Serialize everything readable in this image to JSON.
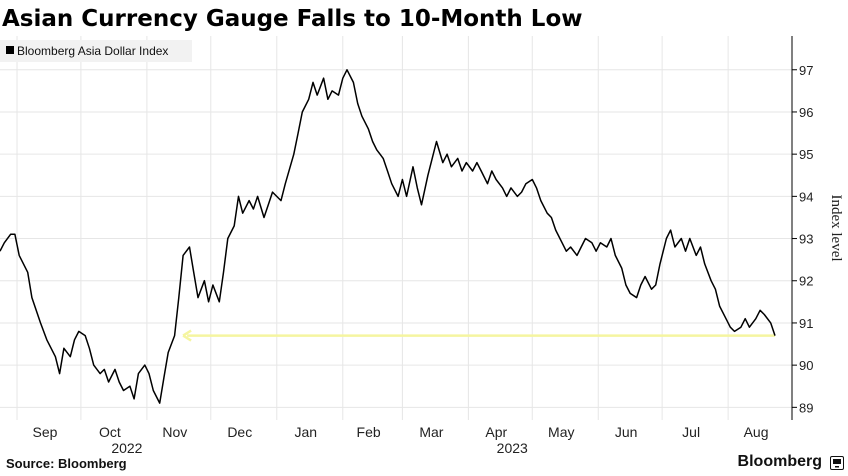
{
  "chart_data": {
    "type": "line",
    "title": "Asian Currency Gauge Falls to 10-Month Low",
    "legend": [
      "Bloomberg Asia Dollar Index"
    ],
    "legend_position": "top-left",
    "ylabel": "Index level",
    "ylim": [
      88.7,
      97.8
    ],
    "yticks": [
      89,
      90,
      91,
      92,
      93,
      94,
      95,
      96,
      97
    ],
    "x_range": [
      "2022-08-24",
      "2023-08-31"
    ],
    "xticks": [
      {
        "label": "Sep",
        "date": "2022-09-01"
      },
      {
        "label": "Oct",
        "date": "2022-10-01"
      },
      {
        "label": "Nov",
        "date": "2022-11-01"
      },
      {
        "label": "Dec",
        "date": "2022-12-01"
      },
      {
        "label": "Jan",
        "date": "2023-01-01"
      },
      {
        "label": "Feb",
        "date": "2023-02-01"
      },
      {
        "label": "Mar",
        "date": "2023-03-01"
      },
      {
        "label": "Apr",
        "date": "2023-04-01"
      },
      {
        "label": "May",
        "date": "2023-05-01"
      },
      {
        "label": "Jun",
        "date": "2023-06-01"
      },
      {
        "label": "Jul",
        "date": "2023-07-01"
      },
      {
        "label": "Aug",
        "date": "2023-08-01"
      }
    ],
    "year_labels": [
      {
        "label": "2022",
        "date": "2022-11-01"
      },
      {
        "label": "2023",
        "date": "2023-05-01"
      }
    ],
    "grid": true,
    "series": [
      {
        "name": "Bloomberg Asia Dollar Index",
        "color": "#000000",
        "points": [
          [
            "2022-08-24",
            92.7
          ],
          [
            "2022-08-26",
            92.9
          ],
          [
            "2022-08-29",
            93.1
          ],
          [
            "2022-08-31",
            93.1
          ],
          [
            "2022-09-02",
            92.6
          ],
          [
            "2022-09-06",
            92.2
          ],
          [
            "2022-09-08",
            91.6
          ],
          [
            "2022-09-12",
            91.0
          ],
          [
            "2022-09-15",
            90.6
          ],
          [
            "2022-09-19",
            90.2
          ],
          [
            "2022-09-21",
            89.8
          ],
          [
            "2022-09-23",
            90.4
          ],
          [
            "2022-09-26",
            90.2
          ],
          [
            "2022-09-28",
            90.6
          ],
          [
            "2022-09-30",
            90.8
          ],
          [
            "2022-10-03",
            90.7
          ],
          [
            "2022-10-05",
            90.4
          ],
          [
            "2022-10-07",
            90.0
          ],
          [
            "2022-10-10",
            89.8
          ],
          [
            "2022-10-12",
            89.9
          ],
          [
            "2022-10-14",
            89.6
          ],
          [
            "2022-10-17",
            89.9
          ],
          [
            "2022-10-19",
            89.6
          ],
          [
            "2022-10-21",
            89.4
          ],
          [
            "2022-10-24",
            89.5
          ],
          [
            "2022-10-26",
            89.2
          ],
          [
            "2022-10-28",
            89.8
          ],
          [
            "2022-10-31",
            90.0
          ],
          [
            "2022-11-02",
            89.8
          ],
          [
            "2022-11-04",
            89.4
          ],
          [
            "2022-11-07",
            89.1
          ],
          [
            "2022-11-09",
            89.7
          ],
          [
            "2022-11-11",
            90.3
          ],
          [
            "2022-11-14",
            90.7
          ],
          [
            "2022-11-16",
            91.6
          ],
          [
            "2022-11-18",
            92.6
          ],
          [
            "2022-11-21",
            92.8
          ],
          [
            "2022-11-23",
            92.2
          ],
          [
            "2022-11-25",
            91.6
          ],
          [
            "2022-11-28",
            92.0
          ],
          [
            "2022-11-30",
            91.5
          ],
          [
            "2022-12-02",
            91.9
          ],
          [
            "2022-12-05",
            91.5
          ],
          [
            "2022-12-07",
            92.2
          ],
          [
            "2022-12-09",
            93.0
          ],
          [
            "2022-12-12",
            93.3
          ],
          [
            "2022-12-14",
            94.0
          ],
          [
            "2022-12-16",
            93.6
          ],
          [
            "2022-12-19",
            93.9
          ],
          [
            "2022-12-21",
            93.7
          ],
          [
            "2022-12-23",
            94.0
          ],
          [
            "2022-12-26",
            93.5
          ],
          [
            "2022-12-28",
            93.8
          ],
          [
            "2022-12-30",
            94.1
          ],
          [
            "2023-01-03",
            93.9
          ],
          [
            "2023-01-05",
            94.3
          ],
          [
            "2023-01-09",
            95.0
          ],
          [
            "2023-01-11",
            95.5
          ],
          [
            "2023-01-13",
            96.0
          ],
          [
            "2023-01-16",
            96.3
          ],
          [
            "2023-01-18",
            96.7
          ],
          [
            "2023-01-20",
            96.4
          ],
          [
            "2023-01-23",
            96.8
          ],
          [
            "2023-01-25",
            96.3
          ],
          [
            "2023-01-27",
            96.5
          ],
          [
            "2023-01-30",
            96.4
          ],
          [
            "2023-02-01",
            96.8
          ],
          [
            "2023-02-03",
            97.0
          ],
          [
            "2023-02-06",
            96.7
          ],
          [
            "2023-02-08",
            96.2
          ],
          [
            "2023-02-10",
            95.9
          ],
          [
            "2023-02-13",
            95.6
          ],
          [
            "2023-02-15",
            95.3
          ],
          [
            "2023-02-17",
            95.1
          ],
          [
            "2023-02-20",
            94.9
          ],
          [
            "2023-02-22",
            94.6
          ],
          [
            "2023-02-24",
            94.3
          ],
          [
            "2023-02-27",
            94.0
          ],
          [
            "2023-03-01",
            94.4
          ],
          [
            "2023-03-03",
            94.0
          ],
          [
            "2023-03-06",
            94.7
          ],
          [
            "2023-03-08",
            94.2
          ],
          [
            "2023-03-10",
            93.8
          ],
          [
            "2023-03-13",
            94.5
          ],
          [
            "2023-03-15",
            94.9
          ],
          [
            "2023-03-17",
            95.3
          ],
          [
            "2023-03-20",
            94.8
          ],
          [
            "2023-03-22",
            95.0
          ],
          [
            "2023-03-24",
            94.7
          ],
          [
            "2023-03-27",
            94.9
          ],
          [
            "2023-03-29",
            94.6
          ],
          [
            "2023-03-31",
            94.8
          ],
          [
            "2023-04-03",
            94.6
          ],
          [
            "2023-04-05",
            94.8
          ],
          [
            "2023-04-07",
            94.6
          ],
          [
            "2023-04-10",
            94.3
          ],
          [
            "2023-04-12",
            94.6
          ],
          [
            "2023-04-14",
            94.4
          ],
          [
            "2023-04-17",
            94.2
          ],
          [
            "2023-04-19",
            94.0
          ],
          [
            "2023-04-21",
            94.2
          ],
          [
            "2023-04-24",
            94.0
          ],
          [
            "2023-04-26",
            94.1
          ],
          [
            "2023-04-28",
            94.3
          ],
          [
            "2023-05-01",
            94.4
          ],
          [
            "2023-05-03",
            94.2
          ],
          [
            "2023-05-05",
            93.9
          ],
          [
            "2023-05-08",
            93.6
          ],
          [
            "2023-05-10",
            93.5
          ],
          [
            "2023-05-12",
            93.2
          ],
          [
            "2023-05-15",
            92.9
          ],
          [
            "2023-05-17",
            92.7
          ],
          [
            "2023-05-19",
            92.8
          ],
          [
            "2023-05-22",
            92.6
          ],
          [
            "2023-05-24",
            92.8
          ],
          [
            "2023-05-26",
            93.0
          ],
          [
            "2023-05-29",
            92.9
          ],
          [
            "2023-05-31",
            92.7
          ],
          [
            "2023-06-02",
            92.9
          ],
          [
            "2023-06-05",
            92.8
          ],
          [
            "2023-06-07",
            93.0
          ],
          [
            "2023-06-09",
            92.6
          ],
          [
            "2023-06-12",
            92.3
          ],
          [
            "2023-06-14",
            91.9
          ],
          [
            "2023-06-16",
            91.7
          ],
          [
            "2023-06-19",
            91.6
          ],
          [
            "2023-06-21",
            91.9
          ],
          [
            "2023-06-23",
            92.1
          ],
          [
            "2023-06-26",
            91.8
          ],
          [
            "2023-06-28",
            91.9
          ],
          [
            "2023-06-30",
            92.4
          ],
          [
            "2023-07-03",
            93.0
          ],
          [
            "2023-07-05",
            93.2
          ],
          [
            "2023-07-07",
            92.8
          ],
          [
            "2023-07-10",
            93.0
          ],
          [
            "2023-07-12",
            92.7
          ],
          [
            "2023-07-14",
            93.0
          ],
          [
            "2023-07-17",
            92.6
          ],
          [
            "2023-07-19",
            92.8
          ],
          [
            "2023-07-21",
            92.4
          ],
          [
            "2023-07-24",
            92.0
          ],
          [
            "2023-07-26",
            91.8
          ],
          [
            "2023-07-28",
            91.4
          ],
          [
            "2023-07-31",
            91.1
          ],
          [
            "2023-08-02",
            90.9
          ],
          [
            "2023-08-04",
            90.8
          ],
          [
            "2023-08-07",
            90.9
          ],
          [
            "2023-08-09",
            91.1
          ],
          [
            "2023-08-11",
            90.9
          ],
          [
            "2023-08-14",
            91.1
          ],
          [
            "2023-08-16",
            91.3
          ],
          [
            "2023-08-18",
            91.2
          ],
          [
            "2023-08-21",
            91.0
          ],
          [
            "2023-08-23",
            90.7
          ]
        ]
      }
    ],
    "annotations": [
      {
        "type": "arrow",
        "color": "#f5f5a0",
        "y": 90.7,
        "from_date": "2023-08-23",
        "to_date": "2022-11-18"
      }
    ]
  },
  "footer": {
    "source": "Source: Bloomberg",
    "brand": "Bloomberg",
    "brand_icon": "bloomberg-terminal-icon"
  },
  "colors": {
    "line": "#000000",
    "grid": "#e6e6e6",
    "annotation": "#f5f5a0",
    "legend_bg": "#f2f2f2"
  }
}
